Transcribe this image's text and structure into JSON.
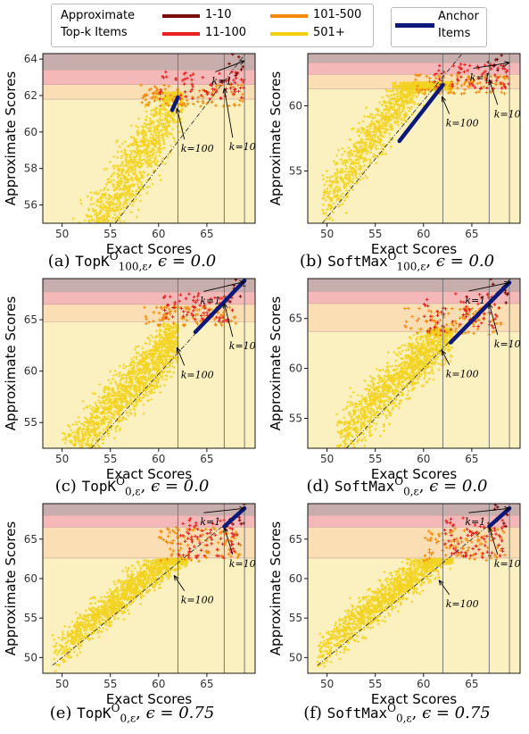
{
  "legend": {
    "title_line1": "Approximate",
    "title_line2": "Top-k Items",
    "items": [
      {
        "label": "1-10",
        "color": "#7b0c0c"
      },
      {
        "label": "11-100",
        "color": "#e8201e"
      },
      {
        "label": "101-500",
        "color": "#f58a0a"
      },
      {
        "label": "501+",
        "color": "#f2cf0f"
      }
    ],
    "anchor_line1": "Anchor",
    "anchor_line2": "Items",
    "anchor_color": "#0b1a7a"
  },
  "colors": {
    "band_top": "#9a6a6a",
    "band_red": "#f2a0a0",
    "band_orange": "#fbd8a8",
    "band_yellow": "#fbeeb8",
    "vline": "#777777",
    "diag": "#333333"
  },
  "chart_data": [
    {
      "type": "scatter",
      "panel_label": "(a)",
      "method": "TopK",
      "sup": "O",
      "sub": "100,ε",
      "epsilon_text": "ϵ = 0.0",
      "xlabel": "Exact Scores",
      "ylabel": "Approximate Scores",
      "xlim": [
        48,
        70
      ],
      "ylim": [
        55,
        64.3
      ],
      "xticks": [
        50,
        55,
        60,
        65
      ],
      "yticks": [
        56,
        58,
        60,
        62,
        64
      ],
      "vlines": [
        62,
        66.8,
        68.9
      ],
      "bands": {
        "k1": 63.4,
        "k10": 62.6,
        "k100": 61.8
      },
      "cloud": {
        "xmin": 49.5,
        "xmax": 62.5,
        "slope": 0.85,
        "spread": 1.6,
        "cap": 62.2
      },
      "top_scatter": {
        "xmin": 58,
        "xmax": 69,
        "ymin": 61.4,
        "ymax": 63.2
      },
      "anchor_segment": [
        [
          61.4,
          61.2
        ],
        [
          62.0,
          61.9
        ]
      ],
      "diagonal": [
        [
          55.5,
          55
        ],
        [
          69,
          64.3
        ]
      ],
      "annotations": [
        {
          "text": "k=1",
          "tx": 65.5,
          "ty": 63.1,
          "ax": 68.9,
          "ay": 63.9
        },
        {
          "text": "k=10",
          "tx": 67.3,
          "ty": 59.5,
          "ax": 66.8,
          "ay": 62.4
        },
        {
          "text": "k=100",
          "tx": 62.3,
          "ty": 59.4,
          "ax": 61.9,
          "ay": 61.3
        }
      ]
    },
    {
      "type": "scatter",
      "panel_label": "(b)",
      "method": "SoftMax",
      "sup": "O",
      "sub": "100,ε",
      "epsilon_text": "ϵ = 0.0",
      "xlabel": "Exact Scores",
      "ylabel": "Approximate Scores",
      "xlim": [
        48,
        70
      ],
      "ylim": [
        51,
        64
      ],
      "xticks": [
        50,
        55,
        60,
        65
      ],
      "yticks": [
        55,
        60
      ],
      "vlines": [
        62,
        66.8,
        68.9
      ],
      "bands": {
        "k1": 63.3,
        "k10": 62.4,
        "k100": 61.3
      },
      "cloud": {
        "xmin": 49.5,
        "xmax": 63,
        "slope": 1.0,
        "spread": 1.5,
        "cap": 61.8
      },
      "top_scatter": {
        "xmin": 59,
        "xmax": 69,
        "ymin": 60.8,
        "ymax": 63.0
      },
      "anchor_segment": [
        [
          57.5,
          57.3
        ],
        [
          62.0,
          61.6
        ]
      ],
      "diagonal": [
        [
          49.5,
          51
        ],
        [
          64,
          64
        ]
      ],
      "annotations": [
        {
          "text": "k=1",
          "tx": 64.8,
          "ty": 62.6,
          "ax": 68.9,
          "ay": 63.3
        },
        {
          "text": "k=10",
          "tx": 67.3,
          "ty": 59.8,
          "ax": 66.8,
          "ay": 62.0
        },
        {
          "text": "k=100",
          "tx": 62.3,
          "ty": 59.1,
          "ax": 61.9,
          "ay": 60.7
        }
      ]
    },
    {
      "type": "scatter",
      "panel_label": "(c)",
      "method": "TopK",
      "sup": "O",
      "sub": "0,ε",
      "epsilon_text": "ϵ = 0.0",
      "xlabel": "Exact Scores",
      "ylabel": "Approximate Scores",
      "xlim": [
        48,
        70
      ],
      "ylim": [
        52.5,
        69
      ],
      "xticks": [
        50,
        55,
        60,
        65
      ],
      "yticks": [
        55,
        60,
        65
      ],
      "vlines": [
        62,
        66.8,
        68.9
      ],
      "bands": {
        "k1": 67.7,
        "k10": 66.5,
        "k100": 64.8
      },
      "cloud": {
        "xmin": 50,
        "xmax": 62,
        "slope": 1.0,
        "spread": 2.0,
        "cap": 64.7
      },
      "top_scatter": {
        "xmin": 58.5,
        "xmax": 68,
        "ymin": 63.8,
        "ymax": 66.2
      },
      "anchor_segment": [
        [
          63.8,
          63.8
        ],
        [
          68.9,
          68.8
        ]
      ],
      "diagonal": [
        [
          53,
          52.5
        ],
        [
          69,
          69
        ]
      ],
      "annotations": [
        {
          "text": "k=1",
          "tx": 64.3,
          "ty": 67.4,
          "ax": 68.9,
          "ay": 68.7
        },
        {
          "text": "k=10",
          "tx": 67.3,
          "ty": 63.0,
          "ax": 66.8,
          "ay": 66.6
        },
        {
          "text": "k=100",
          "tx": 62.3,
          "ty": 60.2,
          "ax": 61.9,
          "ay": 62.3
        }
      ]
    },
    {
      "type": "scatter",
      "panel_label": "(d)",
      "method": "SoftMax",
      "sup": "O",
      "sub": "0,ε",
      "epsilon_text": "ϵ = 0.0",
      "xlabel": "Exact Scores",
      "ylabel": "Approximate Scores",
      "xlim": [
        48,
        70
      ],
      "ylim": [
        52,
        69
      ],
      "xticks": [
        50,
        55,
        60,
        65
      ],
      "yticks": [
        55,
        60,
        65
      ],
      "vlines": [
        62,
        66.8,
        68.9
      ],
      "bands": {
        "k1": 67.7,
        "k10": 66.5,
        "k100": 63.7
      },
      "cloud": {
        "xmin": 51,
        "xmax": 63,
        "slope": 0.95,
        "spread": 1.9,
        "cap": 64.0
      },
      "top_scatter": {
        "xmin": 58,
        "xmax": 68,
        "ymin": 62.0,
        "ymax": 66.0
      },
      "anchor_segment": [
        [
          62.8,
          62.6
        ],
        [
          68.9,
          68.6
        ]
      ],
      "diagonal": [
        [
          52,
          52
        ],
        [
          69,
          69
        ]
      ],
      "annotations": [
        {
          "text": "k=1",
          "tx": 64.3,
          "ty": 67.4,
          "ax": 68.9,
          "ay": 68.6
        },
        {
          "text": "k=10",
          "tx": 67.3,
          "ty": 63.0,
          "ax": 66.8,
          "ay": 66.5
        },
        {
          "text": "k=100",
          "tx": 62.3,
          "ty": 60.0,
          "ax": 61.9,
          "ay": 61.8
        }
      ]
    },
    {
      "type": "scatter",
      "panel_label": "(e)",
      "method": "TopK",
      "sup": "O",
      "sub": "0,ε",
      "epsilon_text": "ϵ = 0.75",
      "xlabel": "Exact Scores",
      "ylabel": "Approximate Scores",
      "xlim": [
        48,
        70
      ],
      "ylim": [
        48,
        69.5
      ],
      "xticks": [
        50,
        55,
        60,
        65
      ],
      "yticks": [
        50,
        55,
        60,
        65
      ],
      "vlines": [
        62,
        66.8,
        68.9
      ],
      "bands": {
        "k1": 68.0,
        "k10": 66.5,
        "k100": 62.6
      },
      "cloud": {
        "xmin": 49,
        "xmax": 63,
        "slope": 1.0,
        "spread": 1.6,
        "cap": 62.5
      },
      "top_scatter": {
        "xmin": 60,
        "xmax": 68.5,
        "ymin": 61.0,
        "ymax": 67.8
      },
      "anchor_segment": [
        [
          66.8,
          66.6
        ],
        [
          68.9,
          68.9
        ]
      ],
      "diagonal": [
        [
          49,
          49
        ],
        [
          69,
          69
        ]
      ],
      "annotations": [
        {
          "text": "k=1",
          "tx": 64.3,
          "ty": 67.9,
          "ax": 68.9,
          "ay": 68.9
        },
        {
          "text": "k=10",
          "tx": 67.3,
          "ty": 62.6,
          "ax": 66.8,
          "ay": 66.5
        },
        {
          "text": "k=100",
          "tx": 62.3,
          "ty": 58.0,
          "ax": 61.6,
          "ay": 60.4
        }
      ]
    },
    {
      "type": "scatter",
      "panel_label": "(f)",
      "method": "SoftMax",
      "sup": "O",
      "sub": "0,ε",
      "epsilon_text": "ϵ = 0.75",
      "xlabel": "Exact Scores",
      "ylabel": "Approximate Scores",
      "xlim": [
        48,
        70
      ],
      "ylim": [
        48,
        69.5
      ],
      "xticks": [
        50,
        55,
        60,
        65
      ],
      "yticks": [
        50,
        55,
        60,
        65
      ],
      "vlines": [
        62,
        66.8,
        68.9
      ],
      "bands": {
        "k1": 68.0,
        "k10": 66.5,
        "k100": 62.6
      },
      "cloud": {
        "xmin": 49,
        "xmax": 63,
        "slope": 1.0,
        "spread": 1.7,
        "cap": 62.5
      },
      "top_scatter": {
        "xmin": 60,
        "xmax": 68.5,
        "ymin": 60.5,
        "ymax": 67.8
      },
      "anchor_segment": [
        [
          66.8,
          66.6
        ],
        [
          68.9,
          68.9
        ]
      ],
      "diagonal": [
        [
          49,
          49
        ],
        [
          69,
          69
        ]
      ],
      "annotations": [
        {
          "text": "k=1",
          "tx": 64.3,
          "ty": 67.9,
          "ax": 68.9,
          "ay": 68.9
        },
        {
          "text": "k=10",
          "tx": 67.3,
          "ty": 62.6,
          "ax": 66.8,
          "ay": 66.5
        },
        {
          "text": "k=100",
          "tx": 62.3,
          "ty": 57.5,
          "ax": 61.6,
          "ay": 59.8
        }
      ]
    }
  ]
}
